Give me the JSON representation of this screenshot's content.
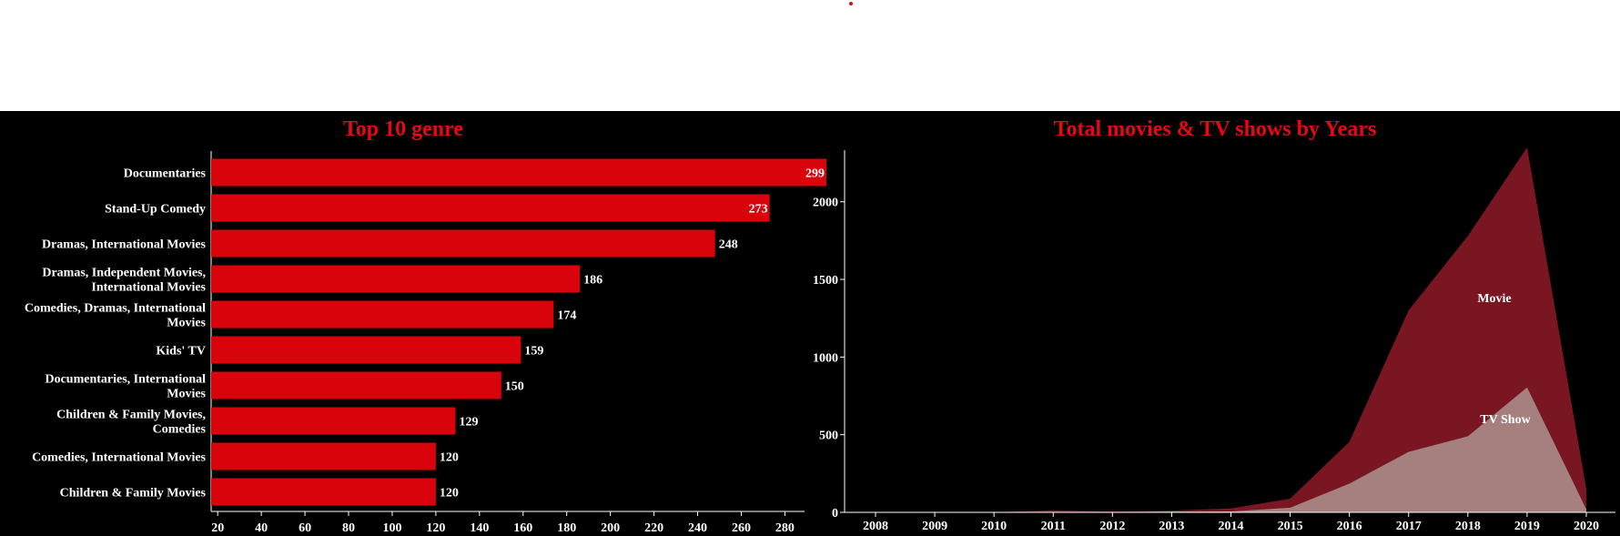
{
  "colors": {
    "accent": "#e50914",
    "bar": "#d9040b",
    "movie_area": "#7a1622",
    "tv_area": "#a67f7f",
    "background": "#000000",
    "text": "#ffffff"
  },
  "chart_data": [
    {
      "type": "bar",
      "orientation": "horizontal",
      "title": "Top 10 genre",
      "categories": [
        [
          "Documentaries"
        ],
        [
          "Stand-Up Comedy"
        ],
        [
          "Dramas, International Movies"
        ],
        [
          "Dramas, Independent Movies,",
          "International Movies"
        ],
        [
          "Comedies, Dramas, International",
          "Movies"
        ],
        [
          "Kids' TV"
        ],
        [
          "Documentaries, International",
          "Movies"
        ],
        [
          "Children & Family Movies,",
          "Comedies"
        ],
        [
          "Comedies, International Movies"
        ],
        [
          "Children & Family Movies"
        ]
      ],
      "values": [
        299,
        273,
        248,
        186,
        174,
        159,
        150,
        129,
        120,
        120
      ],
      "xticks": [
        20,
        40,
        60,
        80,
        100,
        120,
        140,
        160,
        180,
        200,
        220,
        240,
        260,
        280
      ],
      "xlim": [
        17,
        289
      ],
      "grid": false
    },
    {
      "type": "area",
      "stacked": true,
      "title": "Total movies & TV shows by Years",
      "x": [
        2008,
        2009,
        2010,
        2011,
        2012,
        2013,
        2014,
        2015,
        2016,
        2017,
        2018,
        2019,
        2020
      ],
      "series": [
        {
          "name": "TV Show",
          "values": [
            1,
            0,
            0,
            0,
            2,
            5,
            6,
            30,
            185,
            390,
            490,
            805,
            20
          ]
        },
        {
          "name": "Movie",
          "values": [
            1,
            2,
            1,
            13,
            3,
            6,
            19,
            58,
            269,
            911,
            1290,
            1545,
            130
          ]
        }
      ],
      "yticks": [
        0,
        500,
        1000,
        1500,
        2000
      ],
      "ylim": [
        0,
        2350
      ],
      "grid": false
    }
  ]
}
